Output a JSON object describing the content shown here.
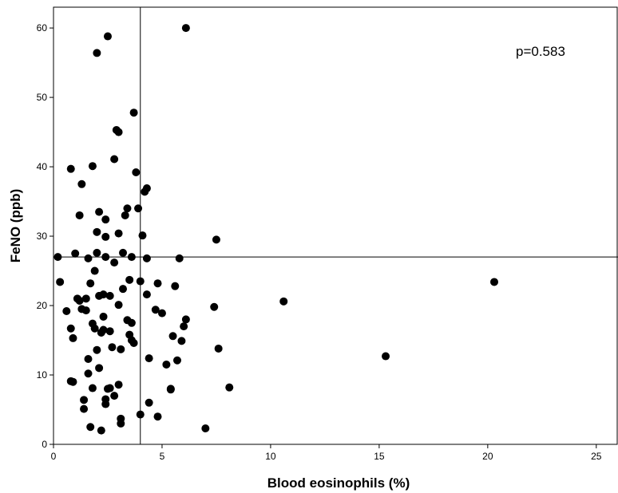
{
  "chart_data": {
    "type": "scatter",
    "title": "",
    "xlabel": "Blood eosinophils (%)",
    "ylabel": "FeNO (ppb)",
    "xlim": [
      0,
      26
    ],
    "ylim": [
      0,
      63
    ],
    "xticks": [
      0,
      5,
      10,
      15,
      20,
      25
    ],
    "yticks": [
      0,
      10,
      20,
      30,
      40,
      50,
      60
    ],
    "xtick_labels": [
      "0",
      "5",
      "10",
      "15",
      "20",
      "25"
    ],
    "ytick_labels": [
      "0",
      "10",
      "20",
      "30",
      "40",
      "50",
      "60"
    ],
    "grid": false,
    "reference_lines": {
      "vertical_x": 4,
      "horizontal_y": 27
    },
    "annotation": "p=0.583",
    "marker_color": "#000000",
    "points": [
      [
        0.2,
        27.0
      ],
      [
        0.3,
        23.4
      ],
      [
        0.6,
        19.2
      ],
      [
        0.8,
        16.7
      ],
      [
        0.8,
        9.1
      ],
      [
        0.9,
        9.0
      ],
      [
        0.9,
        15.3
      ],
      [
        1.0,
        27.5
      ],
      [
        1.1,
        21.0
      ],
      [
        1.2,
        33.0
      ],
      [
        1.2,
        20.7
      ],
      [
        1.3,
        19.5
      ],
      [
        1.3,
        37.5
      ],
      [
        1.4,
        6.4
      ],
      [
        1.4,
        5.1
      ],
      [
        1.5,
        19.3
      ],
      [
        1.5,
        21.0
      ],
      [
        1.6,
        26.8
      ],
      [
        1.6,
        10.2
      ],
      [
        1.6,
        12.3
      ],
      [
        1.7,
        23.2
      ],
      [
        1.7,
        2.5
      ],
      [
        1.8,
        40.1
      ],
      [
        1.8,
        17.4
      ],
      [
        1.8,
        8.1
      ],
      [
        0.8,
        39.7
      ],
      [
        1.9,
        25.0
      ],
      [
        1.9,
        16.7
      ],
      [
        2.0,
        27.6
      ],
      [
        2.0,
        30.6
      ],
      [
        2.0,
        13.6
      ],
      [
        2.0,
        56.4
      ],
      [
        2.1,
        33.5
      ],
      [
        2.1,
        21.4
      ],
      [
        2.1,
        11.0
      ],
      [
        2.2,
        16.1
      ],
      [
        2.2,
        2.0
      ],
      [
        2.3,
        21.6
      ],
      [
        2.3,
        18.4
      ],
      [
        2.3,
        16.5
      ],
      [
        2.4,
        27.0
      ],
      [
        2.4,
        29.9
      ],
      [
        2.4,
        32.4
      ],
      [
        2.4,
        6.5
      ],
      [
        2.4,
        5.8
      ],
      [
        2.5,
        58.8
      ],
      [
        2.5,
        8.0
      ],
      [
        2.6,
        21.4
      ],
      [
        2.6,
        16.3
      ],
      [
        2.6,
        8.1
      ],
      [
        2.7,
        14.0
      ],
      [
        2.8,
        41.1
      ],
      [
        2.8,
        26.2
      ],
      [
        2.8,
        7.0
      ],
      [
        2.9,
        45.3
      ],
      [
        3.0,
        45.0
      ],
      [
        3.0,
        30.4
      ],
      [
        3.0,
        20.1
      ],
      [
        3.0,
        8.6
      ],
      [
        3.1,
        13.7
      ],
      [
        3.1,
        3.7
      ],
      [
        3.1,
        3.0
      ],
      [
        3.2,
        22.4
      ],
      [
        3.2,
        27.6
      ],
      [
        3.3,
        33.0
      ],
      [
        3.4,
        34.0
      ],
      [
        3.4,
        17.9
      ],
      [
        3.5,
        23.7
      ],
      [
        3.5,
        15.8
      ],
      [
        3.6,
        27.0
      ],
      [
        3.6,
        17.5
      ],
      [
        3.6,
        15.0
      ],
      [
        3.7,
        14.6
      ],
      [
        3.7,
        47.8
      ],
      [
        3.8,
        39.2
      ],
      [
        3.9,
        34.0
      ],
      [
        4.0,
        23.5
      ],
      [
        4.0,
        4.3
      ],
      [
        4.1,
        30.1
      ],
      [
        4.2,
        36.4
      ],
      [
        4.3,
        36.9
      ],
      [
        4.3,
        26.8
      ],
      [
        4.3,
        21.6
      ],
      [
        4.4,
        12.4
      ],
      [
        4.4,
        6.0
      ],
      [
        4.7,
        19.4
      ],
      [
        4.8,
        23.2
      ],
      [
        4.8,
        4.0
      ],
      [
        5.0,
        18.9
      ],
      [
        5.2,
        11.5
      ],
      [
        5.4,
        8.0
      ],
      [
        5.4,
        7.9
      ],
      [
        5.5,
        15.6
      ],
      [
        5.6,
        22.8
      ],
      [
        5.7,
        12.1
      ],
      [
        5.8,
        26.8
      ],
      [
        5.9,
        14.9
      ],
      [
        6.0,
        17.0
      ],
      [
        6.1,
        18.0
      ],
      [
        6.1,
        60.0
      ],
      [
        7.0,
        2.3
      ],
      [
        7.4,
        19.8
      ],
      [
        7.5,
        29.5
      ],
      [
        7.6,
        13.8
      ],
      [
        8.1,
        8.2
      ],
      [
        10.6,
        20.6
      ],
      [
        15.3,
        12.7
      ],
      [
        20.3,
        23.4
      ]
    ]
  }
}
